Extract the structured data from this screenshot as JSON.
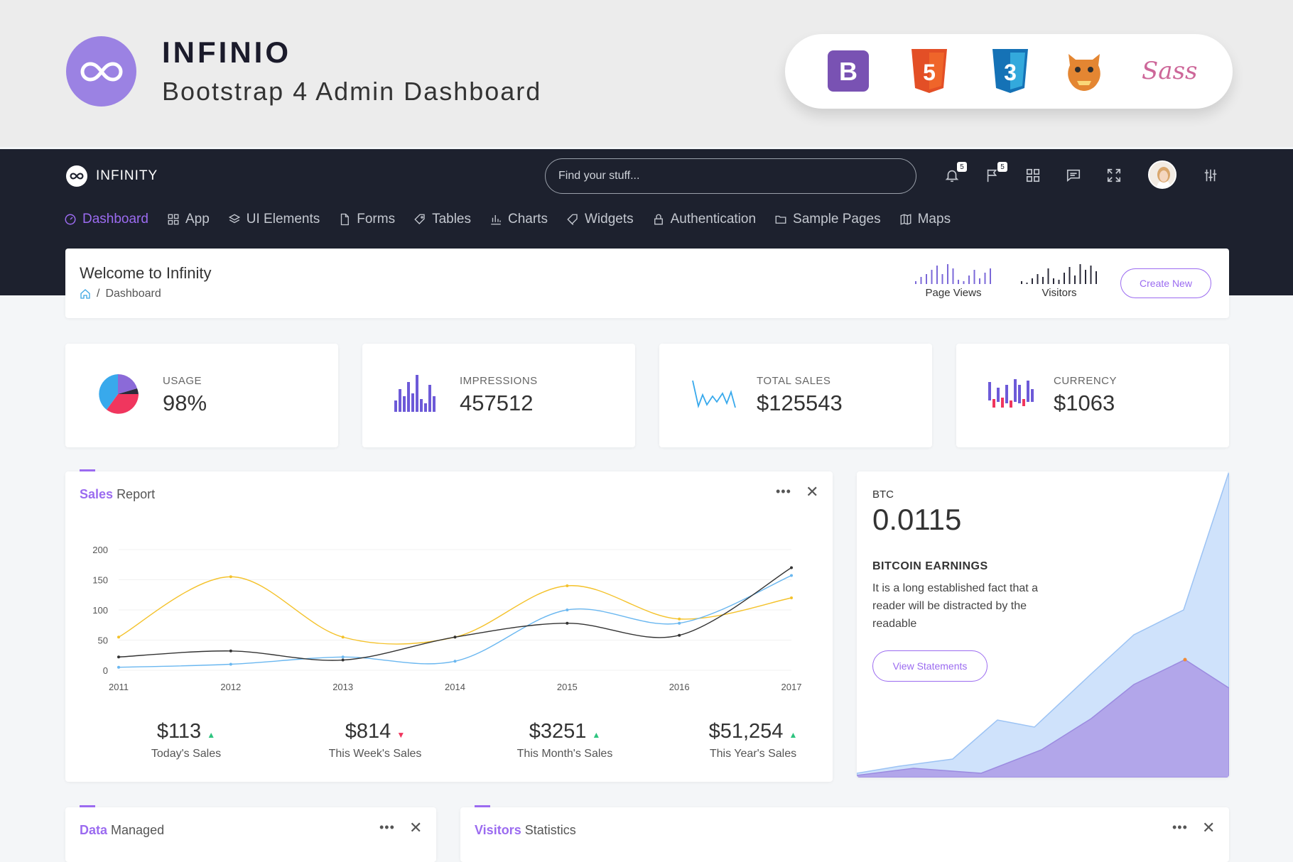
{
  "promo": {
    "title": "INFINIO",
    "subtitle": "Bootstrap 4 Admin Dashboard"
  },
  "topbar": {
    "brand": "INFINITY",
    "search_placeholder": "Find your stuff...",
    "notifications_badge": "5",
    "flags_badge": "5"
  },
  "menu": [
    "Dashboard",
    "App",
    "UI Elements",
    "Forms",
    "Tables",
    "Charts",
    "Widgets",
    "Authentication",
    "Sample Pages",
    "Maps"
  ],
  "welcome": {
    "title": "Welcome to Infinity",
    "breadcrumb": "Dashboard",
    "page_views_label": "Page Views",
    "visitors_label": "Visitors",
    "create_label": "Create New"
  },
  "stats": [
    {
      "label": "USAGE",
      "value": "98%"
    },
    {
      "label": "IMPRESSIONS",
      "value": "457512"
    },
    {
      "label": "TOTAL SALES",
      "value": "$125543"
    },
    {
      "label": "CURRENCY",
      "value": "$1063"
    }
  ],
  "sales_report": {
    "title_bold": "Sales",
    "title_rest": "Report",
    "summary": [
      {
        "amount": "$113",
        "caption": "Today's Sales",
        "trend": "up"
      },
      {
        "amount": "$814",
        "caption": "This Week's Sales",
        "trend": "down"
      },
      {
        "amount": "$3251",
        "caption": "This Month's Sales",
        "trend": "up"
      },
      {
        "amount": "$51,254",
        "caption": "This Year's Sales",
        "trend": "up"
      }
    ]
  },
  "chart_data": {
    "type": "line",
    "x": [
      "2011",
      "2012",
      "2013",
      "2014",
      "2015",
      "2016",
      "2017"
    ],
    "yticks": [
      0,
      50,
      100,
      150,
      200
    ],
    "ylim": [
      0,
      200
    ],
    "series": [
      {
        "color": "#f4c22b",
        "values": [
          55,
          155,
          55,
          55,
          140,
          85,
          120
        ]
      },
      {
        "color": "#6ab7f0",
        "values": [
          5,
          10,
          22,
          15,
          100,
          78,
          157
        ]
      },
      {
        "color": "#333333",
        "values": [
          22,
          32,
          17,
          55,
          78,
          58,
          170
        ]
      }
    ]
  },
  "btc": {
    "label": "BTC",
    "value": "0.0115",
    "heading": "BITCOIN EARNINGS",
    "text": "It is a long established fact that a reader will be distracted by the readable",
    "button": "View Statements"
  },
  "data_managed": {
    "title_bold": "Data",
    "title_rest": "Managed"
  },
  "visitors_statistics": {
    "title_bold": "Visitors",
    "title_rest": "Statistics"
  },
  "colors": {
    "accent": "#9b6bf0",
    "nav": "#1d212e",
    "logo": "#9b82e3"
  }
}
